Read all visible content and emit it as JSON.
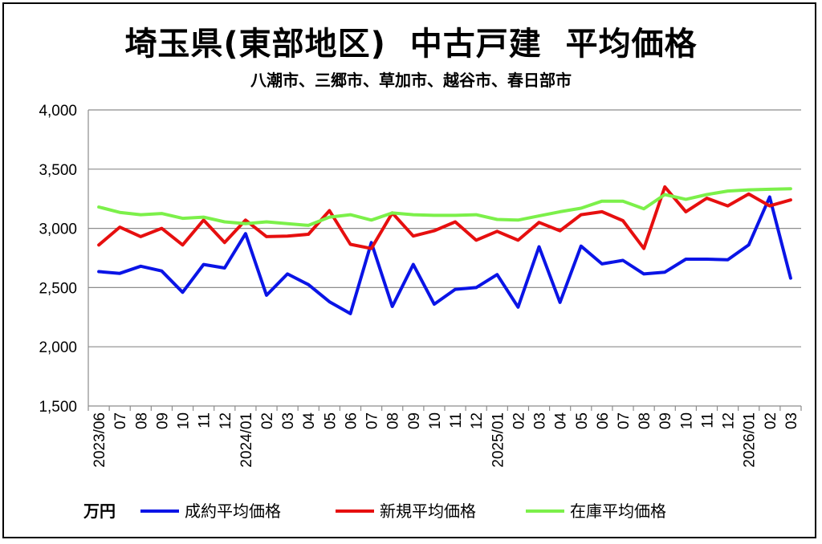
{
  "title": "埼玉県(東部地区)  中古戸建  平均価格",
  "subtitle": "八潮市、三郷市、草加市、越谷市、春日部市",
  "unit": "万円",
  "chart_data": {
    "type": "line",
    "title": "埼玉県(東部地区)  中古戸建  平均価格",
    "subtitle": "八潮市、三郷市、草加市、越谷市、春日部市",
    "ylabel": "万円",
    "ylim": [
      1500,
      4000
    ],
    "yticks": [
      1500,
      2000,
      2500,
      3000,
      3500,
      4000
    ],
    "ytick_labels": [
      "1,500",
      "2,000",
      "2,500",
      "3,000",
      "3,500",
      "4,000"
    ],
    "grid": true,
    "legend_position": "bottom",
    "categories": [
      "2023/06",
      "07",
      "08",
      "09",
      "10",
      "11",
      "12",
      "2024/01",
      "02",
      "03",
      "04",
      "05",
      "06",
      "07",
      "08",
      "09",
      "10",
      "11",
      "12",
      "2025/01",
      "02",
      "03",
      "04",
      "05",
      "06",
      "07",
      "08",
      "09",
      "10",
      "11",
      "12",
      "2026/01",
      "02",
      "03"
    ],
    "series": [
      {
        "name": "成約平均価格",
        "color": "#0a14e6",
        "values": [
          2635,
          2620,
          2680,
          2640,
          2460,
          2695,
          2665,
          2955,
          2435,
          2615,
          2525,
          2380,
          2280,
          2880,
          2340,
          2695,
          2360,
          2485,
          2500,
          2610,
          2335,
          2845,
          2375,
          2850,
          2700,
          2730,
          2615,
          2630,
          2740,
          2740,
          2735,
          2860,
          3265,
          2580
        ]
      },
      {
        "name": "新規平均価格",
        "color": "#e60f0f",
        "values": [
          2860,
          3010,
          2930,
          3000,
          2860,
          3070,
          2880,
          3070,
          2930,
          2935,
          2950,
          3150,
          2865,
          2830,
          3130,
          2935,
          2980,
          3055,
          2900,
          2975,
          2900,
          3050,
          2980,
          3115,
          3140,
          3065,
          2830,
          3350,
          3140,
          3255,
          3190,
          3290,
          3190,
          3240
        ]
      },
      {
        "name": "在庫平均価格",
        "color": "#7cf04a",
        "values": [
          3180,
          3135,
          3115,
          3125,
          3085,
          3095,
          3055,
          3040,
          3055,
          3040,
          3025,
          3095,
          3115,
          3070,
          3130,
          3115,
          3110,
          3110,
          3115,
          3075,
          3070,
          3105,
          3140,
          3170,
          3230,
          3230,
          3165,
          3285,
          3245,
          3285,
          3315,
          3325,
          3330,
          3335
        ]
      }
    ]
  }
}
